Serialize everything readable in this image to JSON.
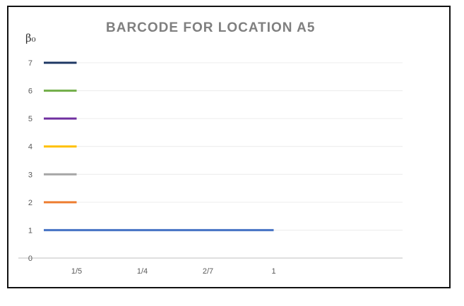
{
  "chart_data": {
    "type": "bar",
    "orientation": "horizontal-barcode",
    "title": "BARCODE FOR LOCATION A5",
    "ylabel": "β₀",
    "xlabel": "",
    "categories": [
      "1/5",
      "1/4",
      "2/7",
      "1"
    ],
    "y_ticks": [
      0,
      1,
      2,
      3,
      4,
      5,
      6,
      7
    ],
    "ylim": [
      0,
      7
    ],
    "grid": true,
    "legend": "none",
    "bars": [
      {
        "y": 1,
        "start": 0,
        "end": 3.5,
        "color": "#4472c4"
      },
      {
        "y": 2,
        "start": 0,
        "end": 0.5,
        "color": "#ed7d31"
      },
      {
        "y": 3,
        "start": 0,
        "end": 0.5,
        "color": "#a5a5a5"
      },
      {
        "y": 4,
        "start": 0,
        "end": 0.5,
        "color": "#ffc000"
      },
      {
        "y": 5,
        "start": 0,
        "end": 0.5,
        "color": "#7030a0"
      },
      {
        "y": 6,
        "start": 0,
        "end": 0.5,
        "color": "#70ad47"
      },
      {
        "y": 7,
        "start": 0,
        "end": 0.5,
        "color": "#1f3864"
      }
    ]
  }
}
